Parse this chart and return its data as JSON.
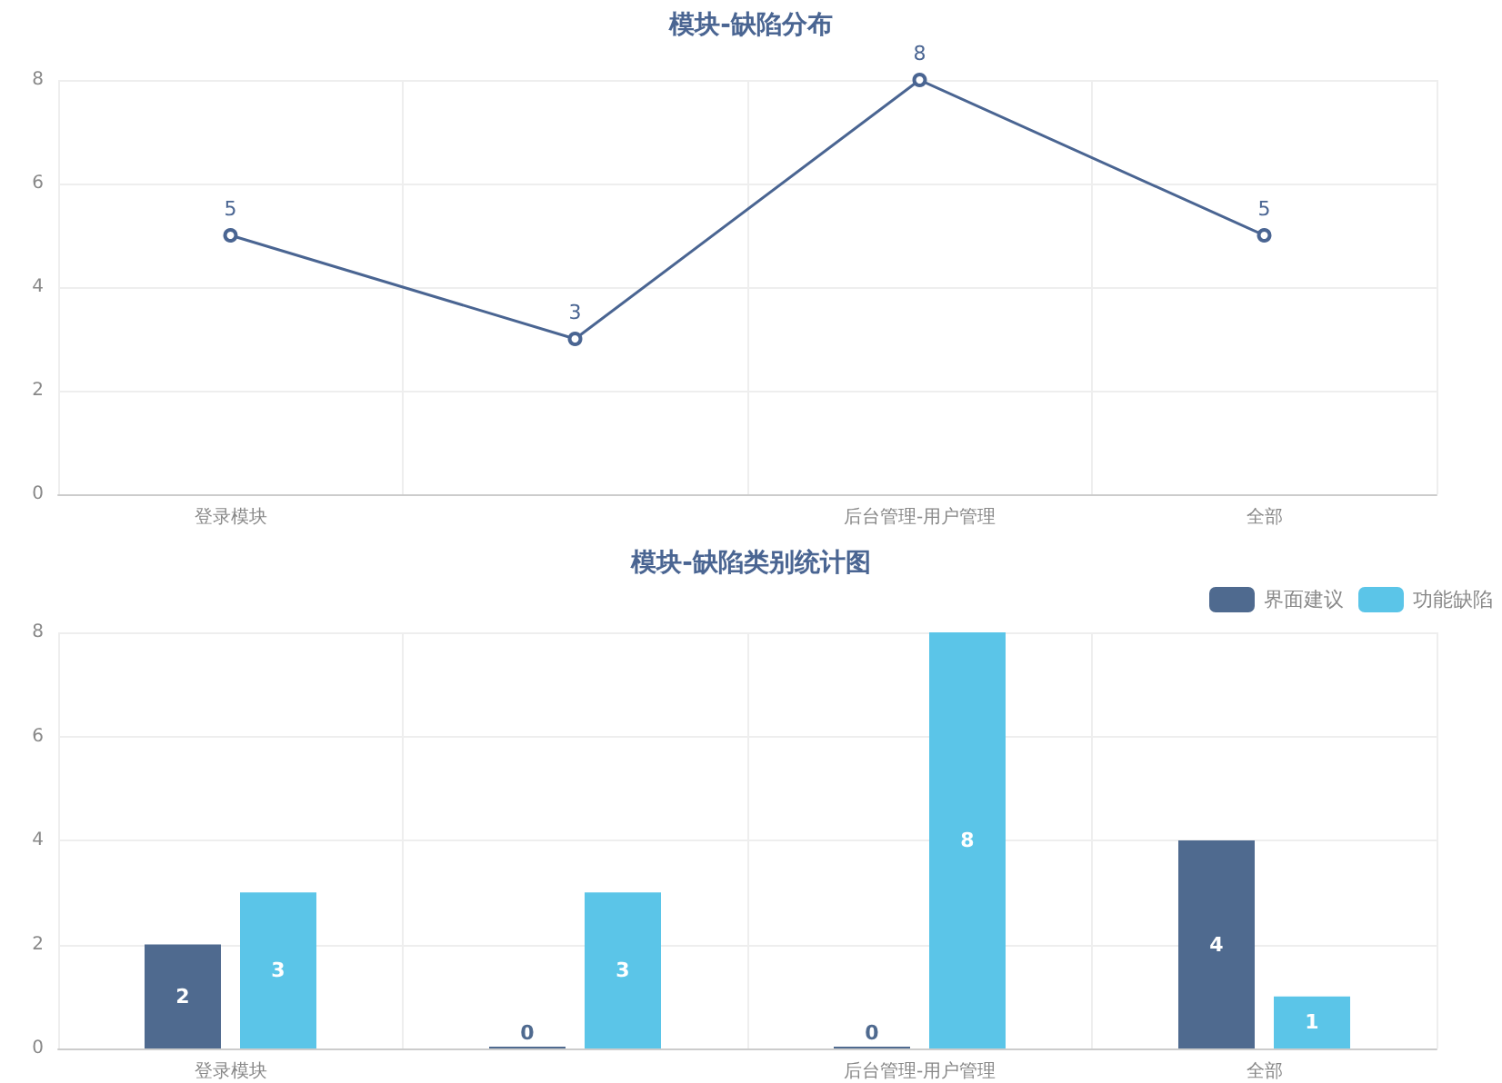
{
  "chart_data": [
    {
      "type": "line",
      "title": "模块-缺陷分布",
      "categories": [
        "登录模块",
        null,
        "后台管理-用户管理",
        "全部"
      ],
      "series": [
        {
          "color": "#4a6592",
          "values": [
            5,
            3,
            8,
            5
          ]
        }
      ],
      "ylim": [
        0,
        8
      ],
      "yticks": [
        0,
        2,
        4,
        6,
        8
      ],
      "grid": true,
      "marker": "circle",
      "data_labels": true
    },
    {
      "type": "bar",
      "title": "模块-缺陷类别统计图",
      "categories": [
        "登录模块",
        null,
        "后台管理-用户管理",
        "全部"
      ],
      "series": [
        {
          "name": "界面建议",
          "color": "#4f6a8f",
          "values": [
            2,
            0,
            0,
            4
          ]
        },
        {
          "name": "功能缺陷",
          "color": "#5bc5e8",
          "values": [
            3,
            3,
            8,
            1
          ]
        }
      ],
      "ylim": [
        0,
        8
      ],
      "yticks": [
        0,
        2,
        4,
        6,
        8
      ],
      "grid": true,
      "legend": "top right",
      "data_labels": true
    }
  ]
}
